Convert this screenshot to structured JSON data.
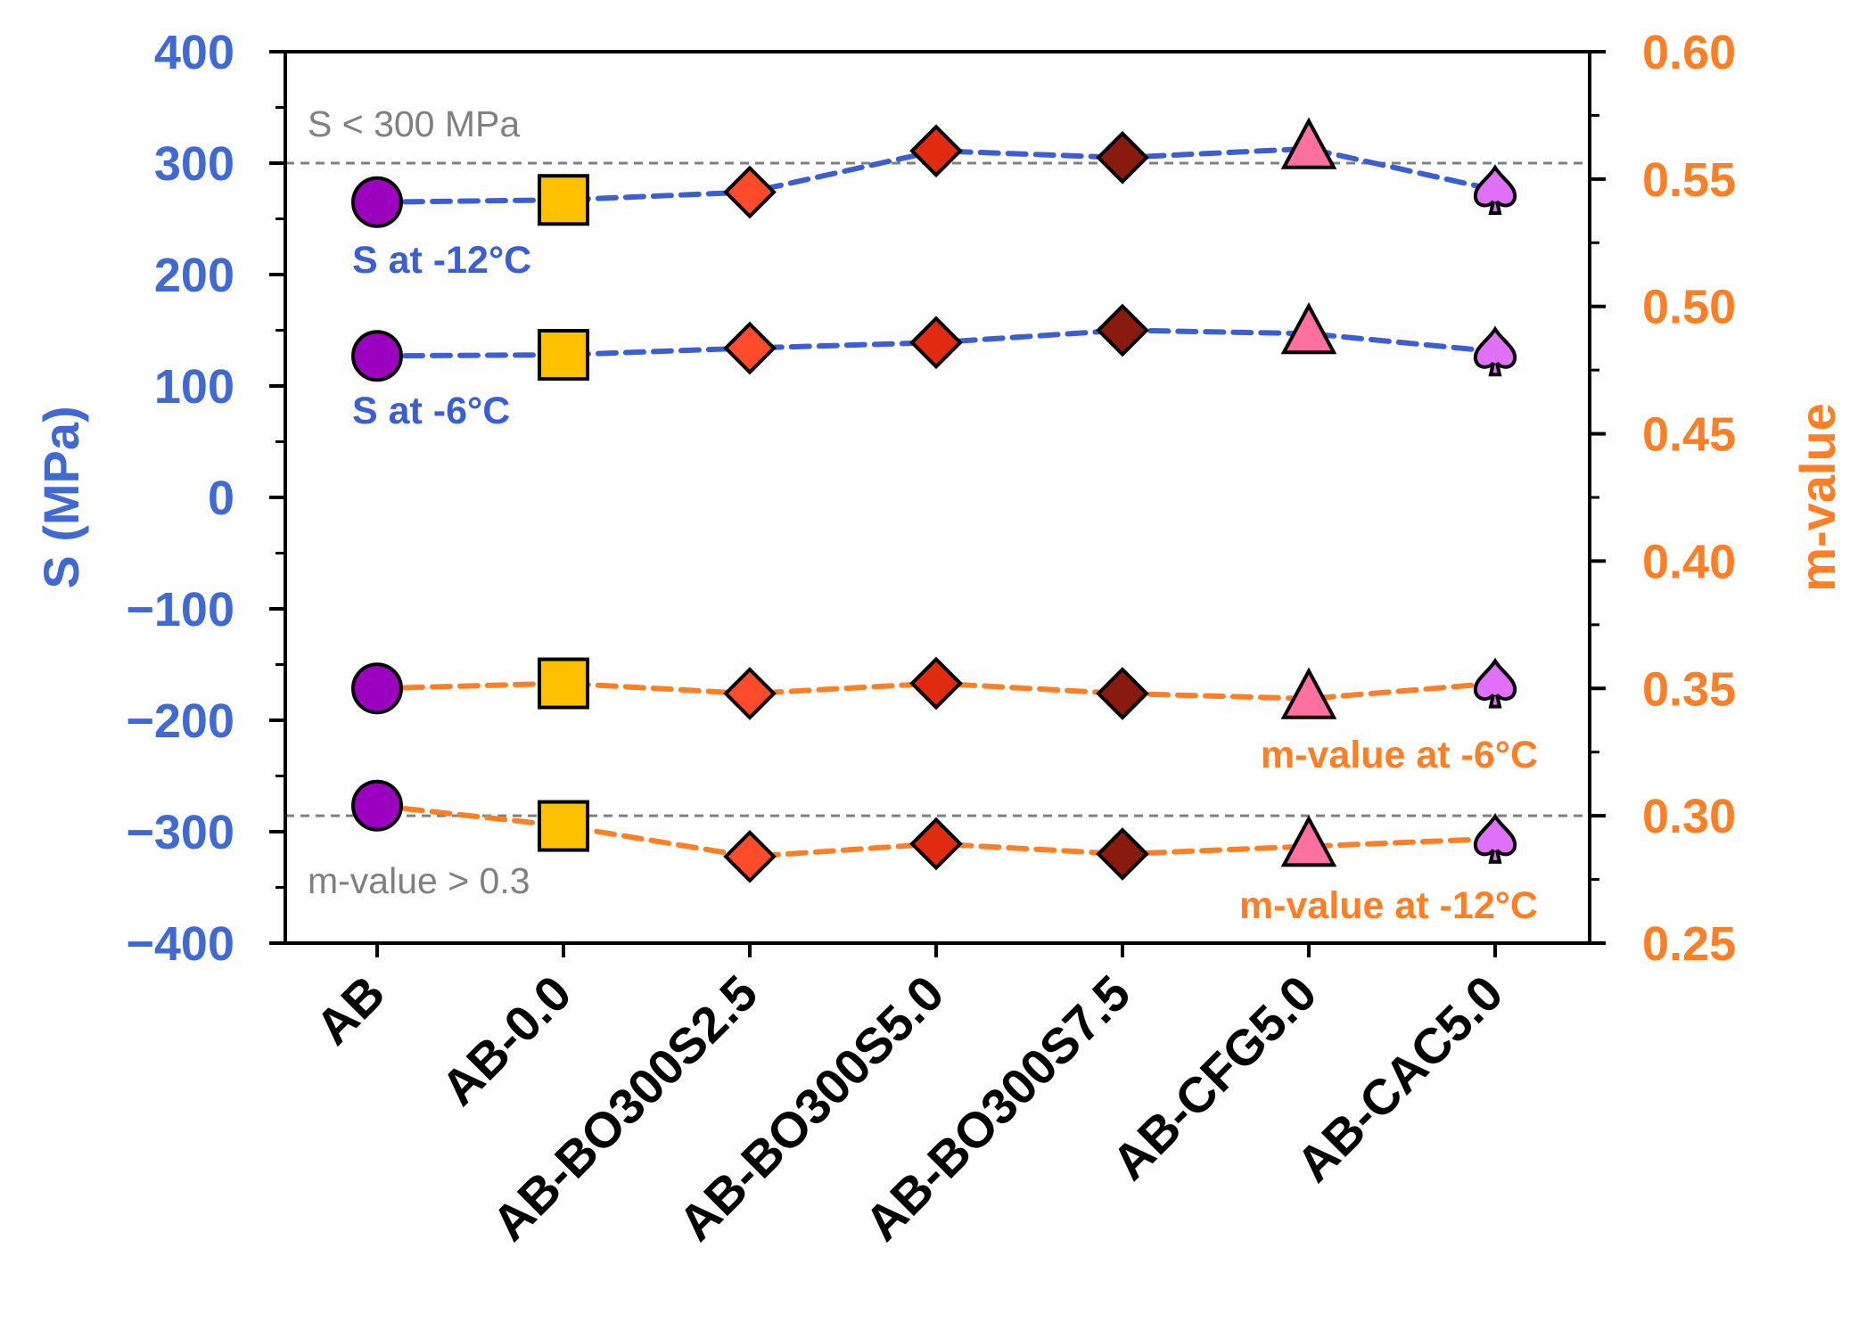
{
  "colors": {
    "s_axis": "#4169D2",
    "m_axis": "#FF7F27",
    "s_series": "#3B5FD0",
    "m_series": "#FF7F27",
    "reference": "#808080",
    "reference_text": "#808080"
  },
  "chart_data": {
    "type": "scatter",
    "categories": [
      "AB",
      "AB-0.0",
      "AB-BO300S2.5",
      "AB-BO300S5.0",
      "AB-BO300S7.5",
      "AB-CFG5.0",
      "AB-CAC5.0"
    ],
    "markers": [
      {
        "shape": "circle",
        "fill": "#9B00BF"
      },
      {
        "shape": "square",
        "fill": "#FFC000"
      },
      {
        "shape": "diamond",
        "fill": "#FF4B2B"
      },
      {
        "shape": "diamond",
        "fill": "#E02B10"
      },
      {
        "shape": "diamond",
        "fill": "#8B1A0E"
      },
      {
        "shape": "triangle",
        "fill": "#FF6FA0"
      },
      {
        "shape": "spade",
        "fill": "#E070F8"
      }
    ],
    "left_axis": {
      "label": "S (MPa)",
      "ylim": [
        -400,
        400
      ],
      "ticks": [
        400,
        300,
        200,
        100,
        0,
        -100,
        -200,
        -300,
        -400
      ],
      "tick_labels": [
        "400",
        "300",
        "200",
        "100",
        "0",
        "−100",
        "−200",
        "−300",
        "−400"
      ]
    },
    "right_axis": {
      "label": "m-value",
      "ylim": [
        0.25,
        0.6
      ],
      "ticks": [
        0.6,
        0.55,
        0.5,
        0.45,
        0.4,
        0.35,
        0.3,
        0.25
      ],
      "tick_labels": [
        "0.60",
        "0.55",
        "0.50",
        "0.45",
        "0.40",
        "0.35",
        "0.30",
        "0.25"
      ]
    },
    "series": [
      {
        "name": "S at -12°C",
        "axis": "left",
        "values": [
          265,
          267,
          274,
          311,
          305,
          313,
          276
        ]
      },
      {
        "name": "S at -6°C",
        "axis": "left",
        "values": [
          127,
          128,
          134,
          139,
          150,
          147,
          131
        ]
      },
      {
        "name": "m-value at -6°C",
        "axis": "right",
        "values": [
          0.35,
          0.352,
          0.348,
          0.352,
          0.348,
          0.346,
          0.352
        ]
      },
      {
        "name": "m-value at -12°C",
        "axis": "right",
        "values": [
          0.304,
          0.296,
          0.284,
          0.289,
          0.285,
          0.288,
          0.291
        ]
      }
    ],
    "reference_lines": [
      {
        "axis": "left",
        "value": 300,
        "label": "S < 300 MPa"
      },
      {
        "axis": "right",
        "value": 0.3,
        "label": "m-value > 0.3"
      }
    ]
  }
}
